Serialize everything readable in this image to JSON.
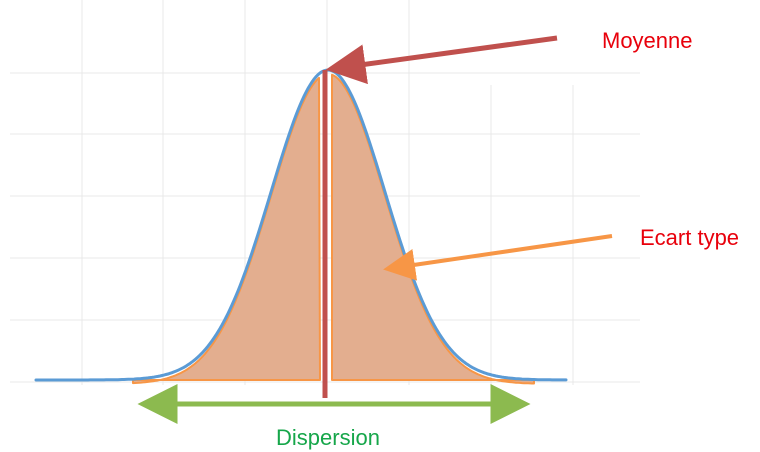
{
  "labels": {
    "mean": "Moyenne",
    "std_dev": "Ecart type",
    "dispersion": "Dispersion"
  },
  "colors": {
    "mean": "#e8000b",
    "std_dev": "#e8000b",
    "dispersion": "#16a64a",
    "mean_arrow": "#c0504d",
    "std_dev_arrow": "#f79646",
    "dispersion_arrow": "#8cba4f",
    "curve": "#5b9bd5",
    "fill": "#e3ae8f",
    "fill_edge": "#f79646",
    "grid": "#e8e8e8"
  }
}
